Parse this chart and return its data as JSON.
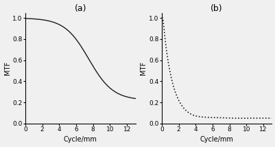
{
  "title_a": "(a)",
  "title_b": "(b)",
  "xlabel": "Cycle/mm",
  "ylabel": "MTF",
  "xlim": [
    0,
    13
  ],
  "ylim": [
    0,
    1.05
  ],
  "xticks": [
    0,
    2,
    4,
    6,
    8,
    10,
    12
  ],
  "yticks": [
    0,
    0.2,
    0.4,
    0.6,
    0.8,
    1
  ],
  "background_color": "#f0f0f0",
  "line_color_a": "#1a1a1a",
  "line_color_b": "#1a1a1a",
  "figsize": [
    4.02,
    2.14
  ],
  "dpi": 100
}
